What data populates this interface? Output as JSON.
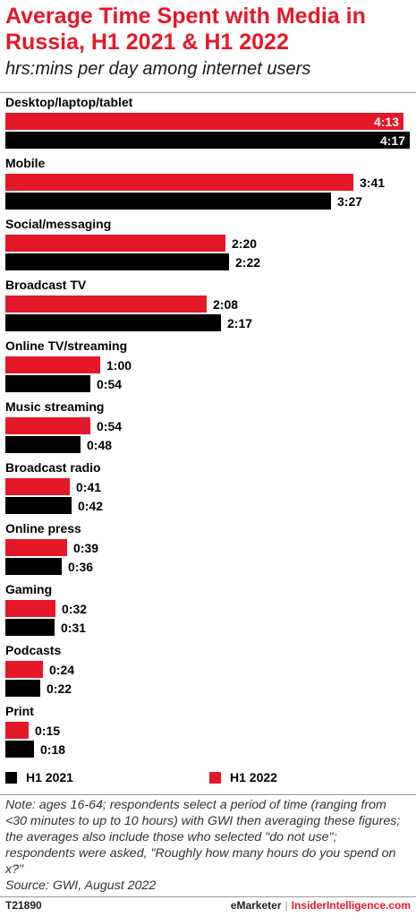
{
  "title": "Average Time Spent with Media in Russia, H1 2021 & H1 2022",
  "subtitle": "hrs:mins per day among internet users",
  "legend": [
    {
      "label": "H1 2021",
      "color": "#000000"
    },
    {
      "label": "H1 2022",
      "color": "#e5182a"
    }
  ],
  "chart_data": {
    "type": "bar",
    "orientation": "horizontal",
    "unit": "hrs:mins",
    "categories": [
      "Desktop/laptop/tablet",
      "Mobile",
      "Social/messaging",
      "Broadcast TV",
      "Online TV/streaming",
      "Music streaming",
      "Broadcast radio",
      "Online press",
      "Gaming",
      "Podcasts",
      "Print"
    ],
    "series": [
      {
        "name": "H1 2022",
        "color": "#e5182a",
        "values": [
          253,
          221,
          140,
          128,
          60,
          54,
          41,
          39,
          32,
          24,
          15
        ],
        "labels": [
          "4:13",
          "3:41",
          "2:20",
          "2:08",
          "1:00",
          "0:54",
          "0:41",
          "0:39",
          "0:32",
          "0:24",
          "0:15"
        ]
      },
      {
        "name": "H1 2021",
        "color": "#000000",
        "values": [
          257,
          207,
          142,
          137,
          54,
          48,
          42,
          36,
          31,
          22,
          18
        ],
        "labels": [
          "4:17",
          "3:27",
          "2:22",
          "2:17",
          "0:54",
          "0:48",
          "0:42",
          "0:36",
          "0:31",
          "0:22",
          "0:18"
        ]
      }
    ],
    "legend_position": "bottom-left",
    "grid": false
  },
  "note": "Note: ages 16-64; respondents select a period of time (ranging from <30 minutes to up to 10 hours) with GWI then averaging these figures; the averages also include those who selected \"do not use\"; respondents were asked, \"Roughly how many hours do you spend on x?\"",
  "source": "Source: GWI, August 2022",
  "footer": {
    "id": "T21890",
    "brand": "eMarketer",
    "brand2": "InsiderIntelligence.com"
  }
}
